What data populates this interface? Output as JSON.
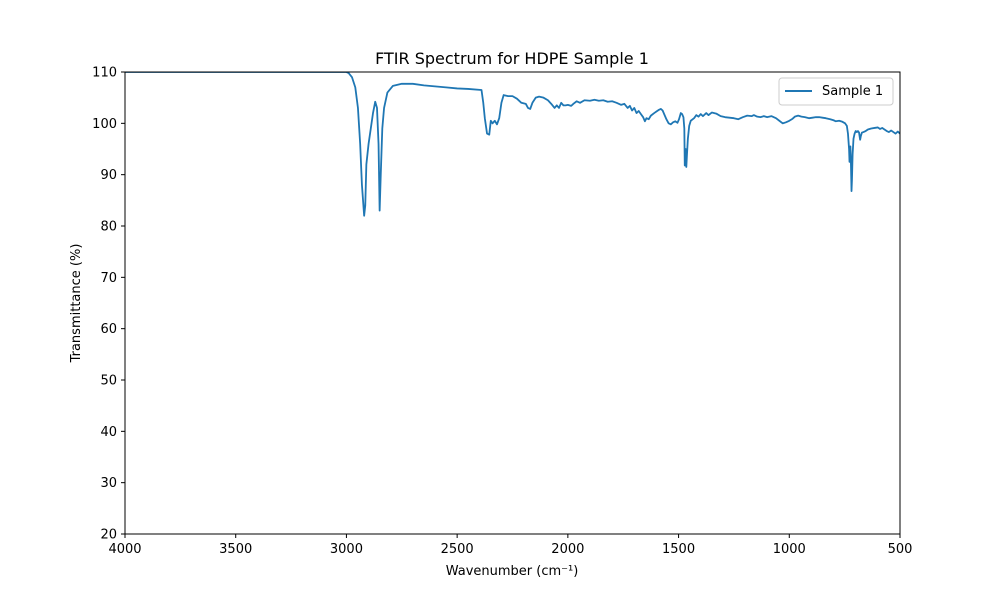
{
  "chart_data": {
    "type": "line",
    "title": "FTIR Spectrum for HDPE Sample 1",
    "xlabel": "Wavenumber (cm⁻¹)",
    "ylabel": "Transmittance (%)",
    "xlim": [
      4000,
      500
    ],
    "ylim": [
      20,
      110
    ],
    "x_ticks": [
      4000,
      3500,
      3000,
      2500,
      2000,
      1500,
      1000,
      500
    ],
    "y_ticks": [
      20,
      30,
      40,
      50,
      60,
      70,
      80,
      90,
      100,
      110
    ],
    "x_reversed": true,
    "grid": false,
    "legend_position": "top-right",
    "series": [
      {
        "name": "Sample 1",
        "color": "#1f77b4",
        "points": [
          [
            3000,
            110
          ],
          [
            2990,
            109.8
          ],
          [
            2975,
            109
          ],
          [
            2960,
            107
          ],
          [
            2948,
            103
          ],
          [
            2938,
            96
          ],
          [
            2930,
            88
          ],
          [
            2920,
            82
          ],
          [
            2915,
            84
          ],
          [
            2910,
            92
          ],
          [
            2900,
            96
          ],
          [
            2890,
            99
          ],
          [
            2880,
            102
          ],
          [
            2870,
            104.2
          ],
          [
            2862,
            103
          ],
          [
            2855,
            96
          ],
          [
            2850,
            83
          ],
          [
            2845,
            90
          ],
          [
            2838,
            99
          ],
          [
            2830,
            103
          ],
          [
            2815,
            106
          ],
          [
            2790,
            107.3
          ],
          [
            2750,
            107.7
          ],
          [
            2700,
            107.7
          ],
          [
            2650,
            107.4
          ],
          [
            2600,
            107.2
          ],
          [
            2550,
            107
          ],
          [
            2500,
            106.8
          ],
          [
            2450,
            106.7
          ],
          [
            2390,
            106.5
          ],
          [
            2382,
            104
          ],
          [
            2375,
            101
          ],
          [
            2365,
            98
          ],
          [
            2355,
            97.8
          ],
          [
            2348,
            100.5
          ],
          [
            2340,
            100
          ],
          [
            2330,
            100.5
          ],
          [
            2320,
            99.8
          ],
          [
            2310,
            101
          ],
          [
            2300,
            104
          ],
          [
            2290,
            105.5
          ],
          [
            2270,
            105.3
          ],
          [
            2250,
            105.3
          ],
          [
            2230,
            104.8
          ],
          [
            2210,
            104
          ],
          [
            2190,
            103.8
          ],
          [
            2180,
            103
          ],
          [
            2170,
            102.8
          ],
          [
            2160,
            104
          ],
          [
            2145,
            105
          ],
          [
            2130,
            105.2
          ],
          [
            2110,
            105
          ],
          [
            2090,
            104.5
          ],
          [
            2075,
            103.8
          ],
          [
            2060,
            103
          ],
          [
            2050,
            103.5
          ],
          [
            2040,
            103
          ],
          [
            2030,
            104
          ],
          [
            2020,
            103.5
          ],
          [
            2010,
            103.5
          ],
          [
            2000,
            103.6
          ],
          [
            1985,
            103.4
          ],
          [
            1975,
            103.8
          ],
          [
            1960,
            104.3
          ],
          [
            1945,
            104
          ],
          [
            1925,
            104.5
          ],
          [
            1900,
            104.4
          ],
          [
            1880,
            104.6
          ],
          [
            1860,
            104.4
          ],
          [
            1840,
            104.5
          ],
          [
            1820,
            104.2
          ],
          [
            1800,
            104.3
          ],
          [
            1780,
            104
          ],
          [
            1760,
            103.6
          ],
          [
            1745,
            103.8
          ],
          [
            1730,
            103
          ],
          [
            1720,
            103.4
          ],
          [
            1710,
            102.5
          ],
          [
            1700,
            103
          ],
          [
            1690,
            102
          ],
          [
            1680,
            102.4
          ],
          [
            1670,
            101.8
          ],
          [
            1660,
            101.2
          ],
          [
            1652,
            100.4
          ],
          [
            1645,
            101
          ],
          [
            1635,
            100.8
          ],
          [
            1625,
            101.5
          ],
          [
            1610,
            102
          ],
          [
            1600,
            102.3
          ],
          [
            1590,
            102.6
          ],
          [
            1580,
            102.8
          ],
          [
            1572,
            102.5
          ],
          [
            1565,
            101.8
          ],
          [
            1555,
            100.8
          ],
          [
            1545,
            100
          ],
          [
            1535,
            99.8
          ],
          [
            1525,
            100.2
          ],
          [
            1515,
            100.4
          ],
          [
            1505,
            100.1
          ],
          [
            1498,
            100.8
          ],
          [
            1490,
            102
          ],
          [
            1484,
            101.8
          ],
          [
            1478,
            101.2
          ],
          [
            1474,
            99
          ],
          [
            1472,
            91.8
          ],
          [
            1470,
            94
          ],
          [
            1468,
            95
          ],
          [
            1465,
            91.5
          ],
          [
            1462,
            94
          ],
          [
            1458,
            97
          ],
          [
            1452,
            99.5
          ],
          [
            1445,
            100.5
          ],
          [
            1430,
            101
          ],
          [
            1420,
            101.6
          ],
          [
            1410,
            101.3
          ],
          [
            1400,
            101.8
          ],
          [
            1390,
            101.4
          ],
          [
            1375,
            102
          ],
          [
            1365,
            101.6
          ],
          [
            1350,
            102.1
          ],
          [
            1330,
            101.9
          ],
          [
            1310,
            101.4
          ],
          [
            1290,
            101.2
          ],
          [
            1270,
            101.1
          ],
          [
            1250,
            101
          ],
          [
            1230,
            100.8
          ],
          [
            1210,
            101.2
          ],
          [
            1190,
            101.5
          ],
          [
            1170,
            101.4
          ],
          [
            1160,
            101.6
          ],
          [
            1145,
            101.3
          ],
          [
            1130,
            101.2
          ],
          [
            1115,
            101.4
          ],
          [
            1100,
            101.2
          ],
          [
            1080,
            101.4
          ],
          [
            1060,
            101
          ],
          [
            1045,
            100.5
          ],
          [
            1030,
            100
          ],
          [
            1015,
            100.2
          ],
          [
            1000,
            100.5
          ],
          [
            985,
            100.9
          ],
          [
            975,
            101.3
          ],
          [
            960,
            101.5
          ],
          [
            945,
            101.3
          ],
          [
            930,
            101.2
          ],
          [
            910,
            101
          ],
          [
            895,
            101.1
          ],
          [
            880,
            101.2
          ],
          [
            865,
            101.2
          ],
          [
            850,
            101.1
          ],
          [
            835,
            101
          ],
          [
            815,
            100.8
          ],
          [
            800,
            100.6
          ],
          [
            790,
            100.4
          ],
          [
            775,
            100.5
          ],
          [
            760,
            100.3
          ],
          [
            748,
            100
          ],
          [
            740,
            99.5
          ],
          [
            735,
            98
          ],
          [
            730,
            95
          ],
          [
            728,
            92.5
          ],
          [
            726,
            94
          ],
          [
            724,
            95.5
          ],
          [
            722,
            93
          ],
          [
            720,
            89
          ],
          [
            719,
            86.8
          ],
          [
            717,
            89
          ],
          [
            714,
            94
          ],
          [
            710,
            97
          ],
          [
            705,
            98
          ],
          [
            700,
            98.5
          ],
          [
            695,
            98.3
          ],
          [
            690,
            98.5
          ],
          [
            685,
            98.2
          ],
          [
            680,
            96.8
          ],
          [
            677,
            97.5
          ],
          [
            672,
            98.2
          ],
          [
            665,
            98.3
          ],
          [
            655,
            98.5
          ],
          [
            645,
            98.8
          ],
          [
            630,
            99
          ],
          [
            615,
            99.1
          ],
          [
            600,
            99.2
          ],
          [
            590,
            98.9
          ],
          [
            580,
            99.1
          ],
          [
            570,
            98.8
          ],
          [
            560,
            98.5
          ],
          [
            550,
            98.3
          ],
          [
            540,
            98.6
          ],
          [
            530,
            98.3
          ],
          [
            520,
            98
          ],
          [
            510,
            98.4
          ],
          [
            500,
            98
          ]
        ]
      }
    ]
  }
}
